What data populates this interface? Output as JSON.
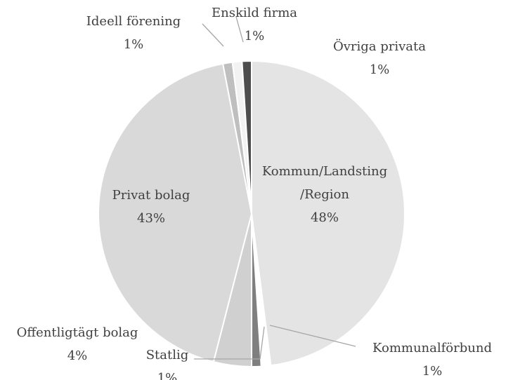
{
  "chart_data": {
    "type": "pie",
    "categories": [
      "Kommun/Landsting /Region",
      "Kommunalförbund",
      "Statlig",
      "Offentligtägt bolag",
      "Privat bolag",
      "Ideell förening",
      "Enskild firma",
      "Övriga privata"
    ],
    "values": [
      48,
      1,
      1,
      4,
      43,
      1,
      1,
      1
    ],
    "value_labels": [
      "48%",
      "1%",
      "1%",
      "4%",
      "43%",
      "1%",
      "1%",
      "1%"
    ],
    "colors": [
      "#e4e4e4",
      "#ffffff",
      "#7f7f7f",
      "#d0d0d0",
      "#d9d9d9",
      "#bfbfbf",
      "#f2f2f2",
      "#4d4d4d"
    ]
  }
}
